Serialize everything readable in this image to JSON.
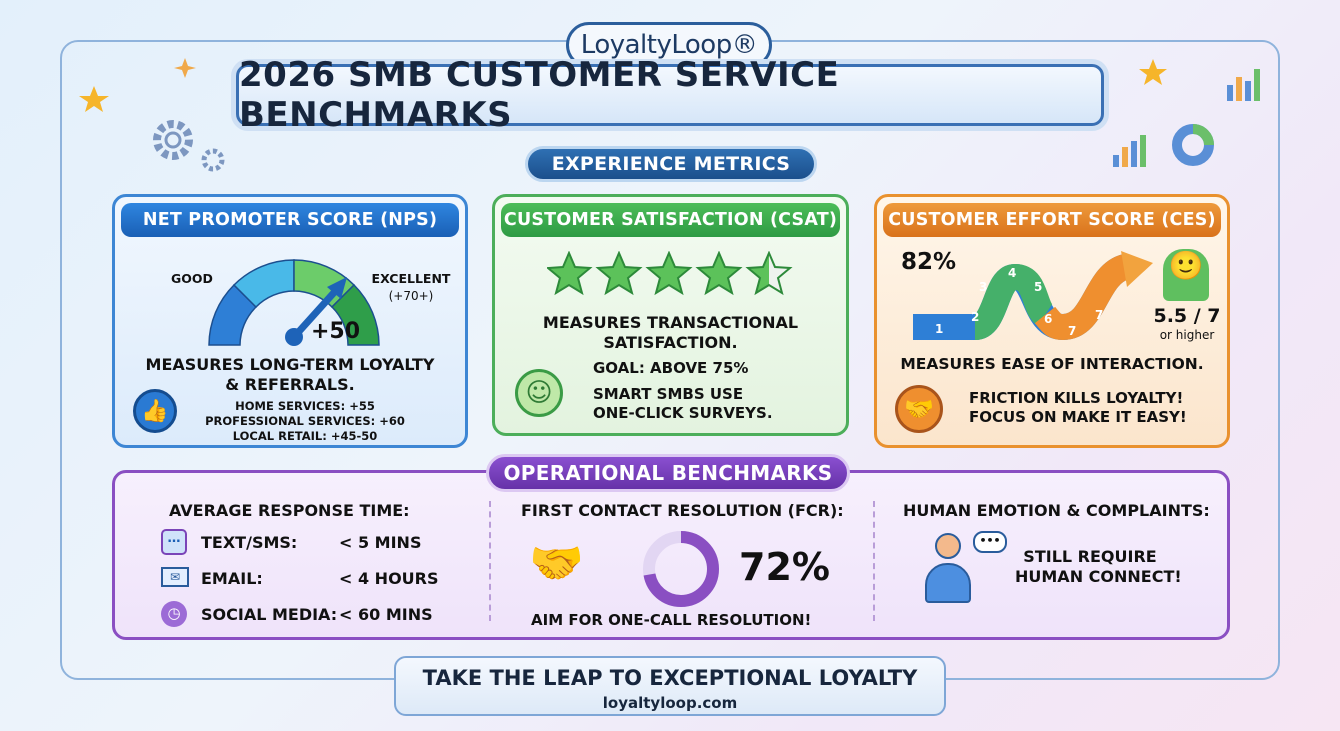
{
  "brand": {
    "logo": "LoyaltyLoop®",
    "title": "2026 SMB CUSTOMER SERVICE BENCHMARKS"
  },
  "experience": {
    "label": "EXPERIENCE METRICS"
  },
  "nps": {
    "header": "NET PROMOTER SCORE (NPS)",
    "gauge_left": "GOOD",
    "gauge_right": "EXCELLENT",
    "gauge_right_sub": "(+70+)",
    "value": "+50",
    "desc": "MEASURES LONG-TERM LOYALTY",
    "desc2": "& REFERRALS.",
    "benchmarks": [
      "HOME SERVICES: +55",
      "PROFESSIONAL SERVICES: +60",
      "LOCAL RETAIL: +45-50"
    ],
    "icon": "thumbs-up-icon",
    "color": "#1a5fb5"
  },
  "csat": {
    "header": "CUSTOMER SATISFACTION (CSAT)",
    "stars": 4.5,
    "desc": "MEASURES TRANSACTIONAL",
    "desc2": "SATISFACTION.",
    "goal": "GOAL: ABOVE 75%",
    "tip": "SMART SMBS USE",
    "tip2": "ONE-CLICK SURVEYS.",
    "icon": "smiley-icon",
    "color": "#2e9b44"
  },
  "ces": {
    "header": "CUSTOMER EFFORT SCORE (CES)",
    "percent": "82%",
    "steps": [
      "1",
      "2",
      "3",
      "4",
      "5",
      "6",
      "7",
      "7"
    ],
    "score": "5.5 / 7",
    "score_sub": "or higher",
    "desc": "MEASURES EASE OF INTERACTION.",
    "tip": "FRICTION KILLS LOYALTY!",
    "tip2": "FOCUS ON MAKE IT EASY!",
    "icon": "handshake-icon",
    "color": "#d9721b"
  },
  "operational": {
    "label": "OPERATIONAL BENCHMARKS",
    "response": {
      "title": "AVERAGE RESPONSE TIME:",
      "rows": [
        {
          "icon": "sms-icon",
          "channel": "TEXT/SMS:",
          "value": "< 5 MINS"
        },
        {
          "icon": "email-icon",
          "channel": "EMAIL:",
          "value": "< 4 HOURS"
        },
        {
          "icon": "clock-icon",
          "channel": "SOCIAL MEDIA:",
          "value": "< 60 MINS"
        }
      ]
    },
    "fcr": {
      "title": "FIRST CONTACT RESOLUTION (FCR):",
      "value": "72%",
      "note": "AIM FOR ONE-CALL RESOLUTION!"
    },
    "human": {
      "title": "HUMAN EMOTION & COMPLAINTS:",
      "note": "STILL REQUIRE",
      "note2": "HUMAN CONNECT!"
    }
  },
  "footer": {
    "tagline": "TAKE THE LEAP TO EXCEPTIONAL LOYALTY",
    "url": "loyaltyloop.com"
  }
}
